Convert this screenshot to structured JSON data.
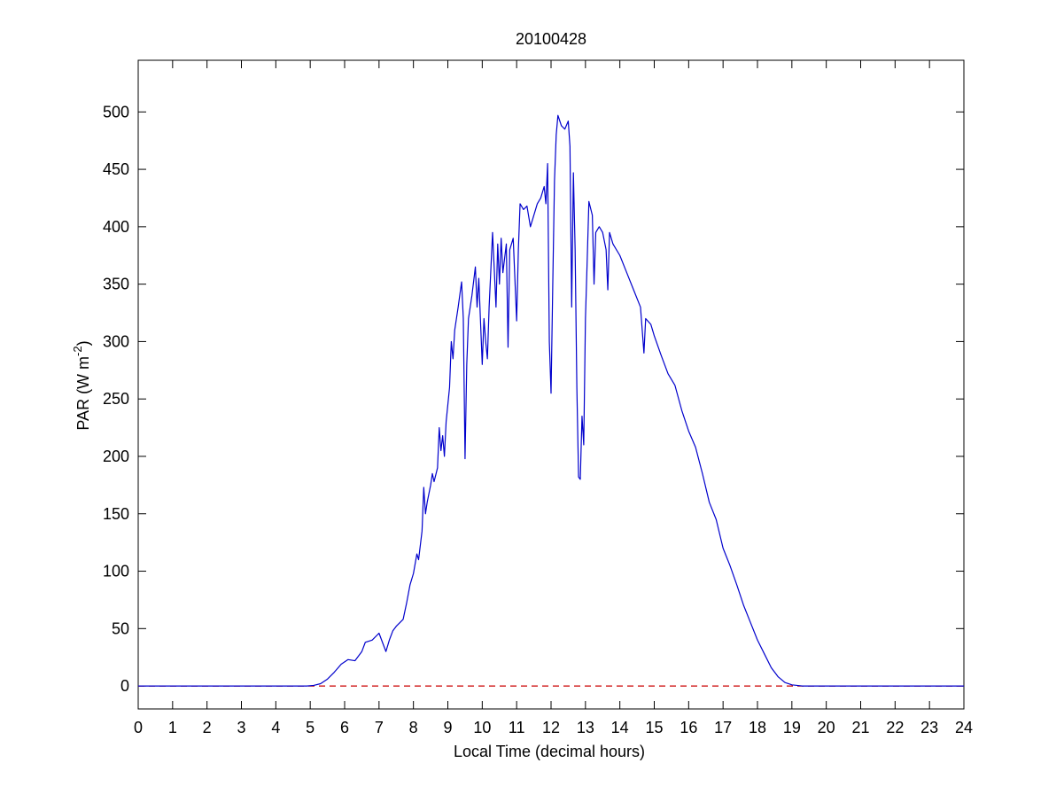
{
  "chart_data": {
    "type": "line",
    "title": "20100428",
    "xlabel": "Local Time (decimal hours)",
    "ylabel_main": "PAR (W m",
    "ylabel_sup": "-2",
    "ylabel_close": ")",
    "xlim": [
      0,
      24
    ],
    "ylim": [
      -20,
      545
    ],
    "xticks": [
      0,
      1,
      2,
      3,
      4,
      5,
      6,
      7,
      8,
      9,
      10,
      11,
      12,
      13,
      14,
      15,
      16,
      17,
      18,
      19,
      20,
      21,
      22,
      23,
      24
    ],
    "yticks": [
      0,
      50,
      100,
      150,
      200,
      250,
      300,
      350,
      400,
      450,
      500
    ],
    "grid": false,
    "legend": "none",
    "colors": {
      "series": "#0000cc",
      "reference": "#cc0000",
      "axes": "#000000"
    },
    "series": [
      {
        "style": "solid",
        "color": "#0000cc",
        "points": [
          [
            0,
            0
          ],
          [
            4.9,
            0
          ],
          [
            5.1,
            0.5
          ],
          [
            5.3,
            2
          ],
          [
            5.5,
            6
          ],
          [
            5.7,
            12
          ],
          [
            5.9,
            19
          ],
          [
            6.1,
            23
          ],
          [
            6.3,
            22
          ],
          [
            6.5,
            30
          ],
          [
            6.6,
            38
          ],
          [
            6.8,
            40
          ],
          [
            7.0,
            46
          ],
          [
            7.1,
            38
          ],
          [
            7.2,
            30
          ],
          [
            7.3,
            40
          ],
          [
            7.4,
            48
          ],
          [
            7.5,
            52
          ],
          [
            7.6,
            55
          ],
          [
            7.7,
            58
          ],
          [
            7.8,
            72
          ],
          [
            7.9,
            88
          ],
          [
            8.0,
            98
          ],
          [
            8.1,
            115
          ],
          [
            8.15,
            110
          ],
          [
            8.25,
            135
          ],
          [
            8.3,
            173
          ],
          [
            8.35,
            150
          ],
          [
            8.4,
            160
          ],
          [
            8.5,
            175
          ],
          [
            8.55,
            185
          ],
          [
            8.6,
            178
          ],
          [
            8.7,
            190
          ],
          [
            8.75,
            225
          ],
          [
            8.8,
            205
          ],
          [
            8.85,
            218
          ],
          [
            8.9,
            200
          ],
          [
            8.95,
            230
          ],
          [
            9.0,
            245
          ],
          [
            9.05,
            260
          ],
          [
            9.1,
            300
          ],
          [
            9.15,
            285
          ],
          [
            9.2,
            310
          ],
          [
            9.3,
            330
          ],
          [
            9.4,
            352
          ],
          [
            9.45,
            320
          ],
          [
            9.5,
            198
          ],
          [
            9.55,
            280
          ],
          [
            9.6,
            320
          ],
          [
            9.7,
            340
          ],
          [
            9.8,
            365
          ],
          [
            9.85,
            330
          ],
          [
            9.9,
            355
          ],
          [
            10.0,
            280
          ],
          [
            10.05,
            320
          ],
          [
            10.1,
            300
          ],
          [
            10.15,
            285
          ],
          [
            10.2,
            330
          ],
          [
            10.3,
            395
          ],
          [
            10.4,
            330
          ],
          [
            10.45,
            385
          ],
          [
            10.5,
            350
          ],
          [
            10.55,
            390
          ],
          [
            10.6,
            360
          ],
          [
            10.7,
            385
          ],
          [
            10.75,
            295
          ],
          [
            10.8,
            380
          ],
          [
            10.9,
            390
          ],
          [
            11.0,
            318
          ],
          [
            11.05,
            380
          ],
          [
            11.1,
            420
          ],
          [
            11.2,
            415
          ],
          [
            11.3,
            418
          ],
          [
            11.4,
            400
          ],
          [
            11.5,
            410
          ],
          [
            11.6,
            420
          ],
          [
            11.7,
            425
          ],
          [
            11.8,
            435
          ],
          [
            11.85,
            420
          ],
          [
            11.9,
            455
          ],
          [
            11.95,
            300
          ],
          [
            12.0,
            255
          ],
          [
            12.05,
            350
          ],
          [
            12.1,
            440
          ],
          [
            12.15,
            480
          ],
          [
            12.2,
            497
          ],
          [
            12.3,
            488
          ],
          [
            12.4,
            485
          ],
          [
            12.5,
            492
          ],
          [
            12.55,
            470
          ],
          [
            12.6,
            330
          ],
          [
            12.65,
            447
          ],
          [
            12.7,
            380
          ],
          [
            12.75,
            260
          ],
          [
            12.8,
            182
          ],
          [
            12.85,
            180
          ],
          [
            12.9,
            235
          ],
          [
            12.95,
            210
          ],
          [
            13.0,
            320
          ],
          [
            13.05,
            370
          ],
          [
            13.1,
            422
          ],
          [
            13.2,
            410
          ],
          [
            13.25,
            350
          ],
          [
            13.3,
            395
          ],
          [
            13.4,
            400
          ],
          [
            13.5,
            395
          ],
          [
            13.6,
            380
          ],
          [
            13.65,
            345
          ],
          [
            13.7,
            395
          ],
          [
            13.8,
            385
          ],
          [
            14.0,
            375
          ],
          [
            14.2,
            360
          ],
          [
            14.4,
            345
          ],
          [
            14.6,
            330
          ],
          [
            14.7,
            290
          ],
          [
            14.75,
            320
          ],
          [
            14.9,
            315
          ],
          [
            15.0,
            305
          ],
          [
            15.2,
            288
          ],
          [
            15.4,
            272
          ],
          [
            15.6,
            262
          ],
          [
            15.8,
            240
          ],
          [
            16.0,
            222
          ],
          [
            16.2,
            208
          ],
          [
            16.4,
            185
          ],
          [
            16.6,
            160
          ],
          [
            16.8,
            145
          ],
          [
            17.0,
            120
          ],
          [
            17.2,
            105
          ],
          [
            17.4,
            88
          ],
          [
            17.6,
            70
          ],
          [
            17.8,
            55
          ],
          [
            18.0,
            40
          ],
          [
            18.2,
            28
          ],
          [
            18.4,
            16
          ],
          [
            18.6,
            8
          ],
          [
            18.8,
            3
          ],
          [
            19.0,
            1
          ],
          [
            19.3,
            0
          ],
          [
            24,
            0
          ]
        ]
      },
      {
        "style": "dashed",
        "color": "#cc0000",
        "points": [
          [
            0,
            0
          ],
          [
            24,
            0
          ]
        ]
      }
    ]
  }
}
